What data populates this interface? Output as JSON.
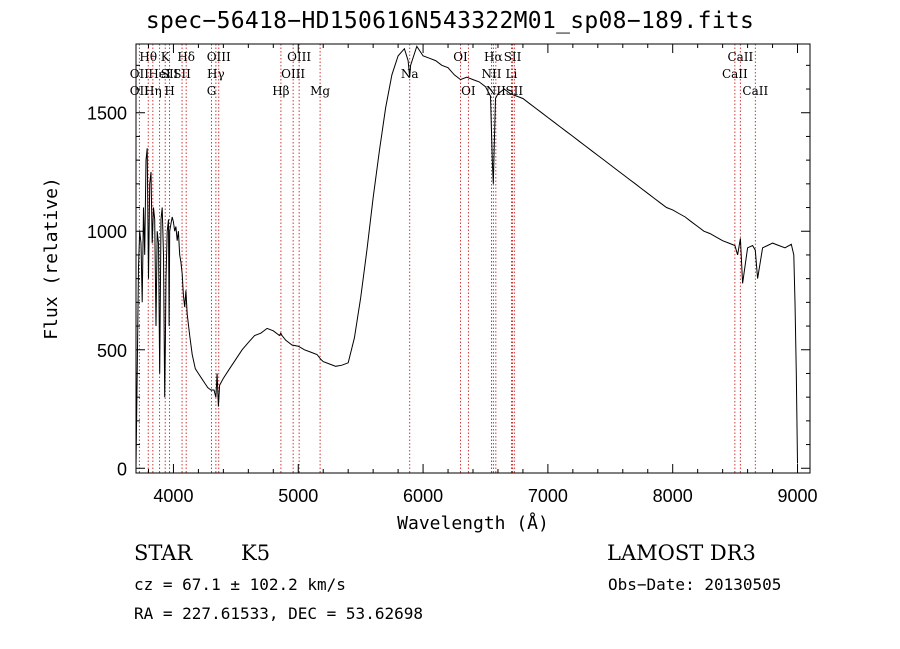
{
  "chart_data": {
    "type": "line",
    "title": "spec−56418−HD150616N543322M01_sp08−189.fits",
    "xlabel": "Wavelength (Å)",
    "ylabel": "Flux (relative)",
    "xlim": [
      3700,
      9100
    ],
    "ylim": [
      -20,
      1790
    ],
    "x_ticks": [
      4000,
      5000,
      6000,
      7000,
      8000,
      9000
    ],
    "y_ticks": [
      0,
      500,
      1000,
      1500
    ],
    "series": [
      {
        "name": "spectrum",
        "x": [
          3700,
          3710,
          3720,
          3730,
          3740,
          3750,
          3760,
          3770,
          3780,
          3790,
          3800,
          3810,
          3820,
          3830,
          3840,
          3850,
          3860,
          3870,
          3880,
          3890,
          3900,
          3910,
          3920,
          3930,
          3935,
          3940,
          3950,
          3960,
          3965,
          3970,
          3980,
          3990,
          4000,
          4010,
          4020,
          4030,
          4040,
          4050,
          4060,
          4070,
          4080,
          4090,
          4100,
          4110,
          4130,
          4150,
          4175,
          4200,
          4225,
          4250,
          4275,
          4300,
          4325,
          4340,
          4350,
          4360,
          4370,
          4380,
          4400,
          4450,
          4500,
          4550,
          4600,
          4650,
          4700,
          4750,
          4800,
          4850,
          4860,
          4870,
          4900,
          4950,
          5000,
          5050,
          5100,
          5150,
          5180,
          5200,
          5250,
          5300,
          5350,
          5400,
          5450,
          5500,
          5550,
          5600,
          5650,
          5700,
          5750,
          5800,
          5850,
          5880,
          5893,
          5900,
          5950,
          6000,
          6050,
          6100,
          6150,
          6200,
          6250,
          6300,
          6350,
          6400,
          6450,
          6500,
          6540,
          6555,
          6563,
          6570,
          6580,
          6600,
          6650,
          6700,
          6750,
          6800,
          6850,
          6900,
          6950,
          7000,
          7050,
          7100,
          7150,
          7200,
          7250,
          7300,
          7350,
          7400,
          7450,
          7500,
          7550,
          7600,
          7650,
          7700,
          7750,
          7800,
          7850,
          7900,
          7950,
          8000,
          8050,
          8100,
          8150,
          8200,
          8250,
          8300,
          8350,
          8400,
          8450,
          8498,
          8520,
          8542,
          8560,
          8600,
          8640,
          8662,
          8680,
          8720,
          8760,
          8800,
          8850,
          8900,
          8950,
          8970,
          8980,
          8990,
          9000
        ],
        "y": [
          0,
          400,
          850,
          1000,
          950,
          700,
          1100,
          900,
          1300,
          1350,
          800,
          1200,
          1250,
          950,
          1100,
          1050,
          600,
          1000,
          950,
          400,
          1050,
          1100,
          900,
          300,
          500,
          800,
          1000,
          1050,
          600,
          1000,
          1030,
          1060,
          1040,
          1000,
          1020,
          960,
          1000,
          900,
          870,
          820,
          730,
          680,
          750,
          650,
          560,
          480,
          420,
          400,
          380,
          360,
          340,
          330,
          330,
          300,
          400,
          260,
          350,
          360,
          380,
          420,
          460,
          500,
          530,
          560,
          570,
          590,
          580,
          560,
          570,
          560,
          540,
          520,
          515,
          500,
          490,
          480,
          460,
          450,
          440,
          430,
          435,
          445,
          550,
          720,
          920,
          1140,
          1340,
          1520,
          1660,
          1740,
          1770,
          1720,
          1650,
          1700,
          1780,
          1740,
          1730,
          1720,
          1700,
          1690,
          1660,
          1640,
          1650,
          1640,
          1630,
          1610,
          1570,
          1300,
          1200,
          1350,
          1560,
          1580,
          1600,
          1580,
          1570,
          1560,
          1540,
          1520,
          1500,
          1480,
          1460,
          1440,
          1420,
          1400,
          1380,
          1360,
          1340,
          1320,
          1300,
          1280,
          1260,
          1240,
          1220,
          1200,
          1180,
          1160,
          1140,
          1120,
          1100,
          1090,
          1075,
          1060,
          1040,
          1020,
          1000,
          990,
          975,
          960,
          950,
          940,
          900,
          970,
          780,
          930,
          940,
          920,
          800,
          930,
          940,
          950,
          940,
          930,
          945,
          900,
          700,
          400,
          20
        ]
      }
    ],
    "line_markers": [
      {
        "label": "Hθ",
        "x": 3798,
        "row": 0
      },
      {
        "label": "OII",
        "x": 3727,
        "row": 1
      },
      {
        "label": "OII",
        "x": 3727,
        "row": 2
      },
      {
        "label": "Hη",
        "x": 3835,
        "row": 2
      },
      {
        "label": "HeI",
        "x": 3889,
        "row": 1
      },
      {
        "label": "K",
        "x": 3934,
        "row": 0
      },
      {
        "label": "SII",
        "x": 3969,
        "row": 1
      },
      {
        "label": "H",
        "x": 3969,
        "row": 2
      },
      {
        "label": "Hδ",
        "x": 4102,
        "row": 0
      },
      {
        "label": "SII",
        "x": 4069,
        "row": 1
      },
      {
        "label": "OIII",
        "x": 4363,
        "row": 0
      },
      {
        "label": "Hγ",
        "x": 4340,
        "row": 1
      },
      {
        "label": "G",
        "x": 4305,
        "row": 2
      },
      {
        "label": "Hβ",
        "x": 4861,
        "row": 2
      },
      {
        "label": "OIII",
        "x": 5007,
        "row": 0
      },
      {
        "label": "OIII",
        "x": 4959,
        "row": 1
      },
      {
        "label": "Mg",
        "x": 5175,
        "row": 2
      },
      {
        "label": "Na",
        "x": 5893,
        "row": 1
      },
      {
        "label": "OI",
        "x": 6300,
        "row": 0
      },
      {
        "label": "OI",
        "x": 6363,
        "row": 2
      },
      {
        "label": "Hα",
        "x": 6563,
        "row": 0
      },
      {
        "label": "SII",
        "x": 6717,
        "row": 0
      },
      {
        "label": "NII",
        "x": 6548,
        "row": 1
      },
      {
        "label": "Li",
        "x": 6708,
        "row": 1
      },
      {
        "label": "NII",
        "x": 6583,
        "row": 2
      },
      {
        "label": "SII",
        "x": 6731,
        "row": 2
      },
      {
        "label": "CaII",
        "x": 8542,
        "row": 0
      },
      {
        "label": "CaII",
        "x": 8498,
        "row": 1
      },
      {
        "label": "CaII",
        "x": 8662,
        "row": 2
      }
    ],
    "marker_lines_x": [
      3727,
      3798,
      3835,
      3889,
      3934,
      3969,
      4069,
      4102,
      4305,
      4340,
      4363,
      4861,
      4959,
      5007,
      5175,
      5893,
      6300,
      6363,
      6548,
      6563,
      6583,
      6708,
      6717,
      6731,
      8498,
      8542,
      8662
    ],
    "colors": {
      "line": "#000000",
      "marker": "#cc2222"
    }
  },
  "info": {
    "object_class": "STAR",
    "subclass": "K5",
    "cz": "cz = 67.1 ± 102.2 km/s",
    "coords": "RA = 227.61533, DEC =  53.62698",
    "survey": "LAMOST DR3",
    "obs_date": "Obs−Date: 20130505"
  }
}
